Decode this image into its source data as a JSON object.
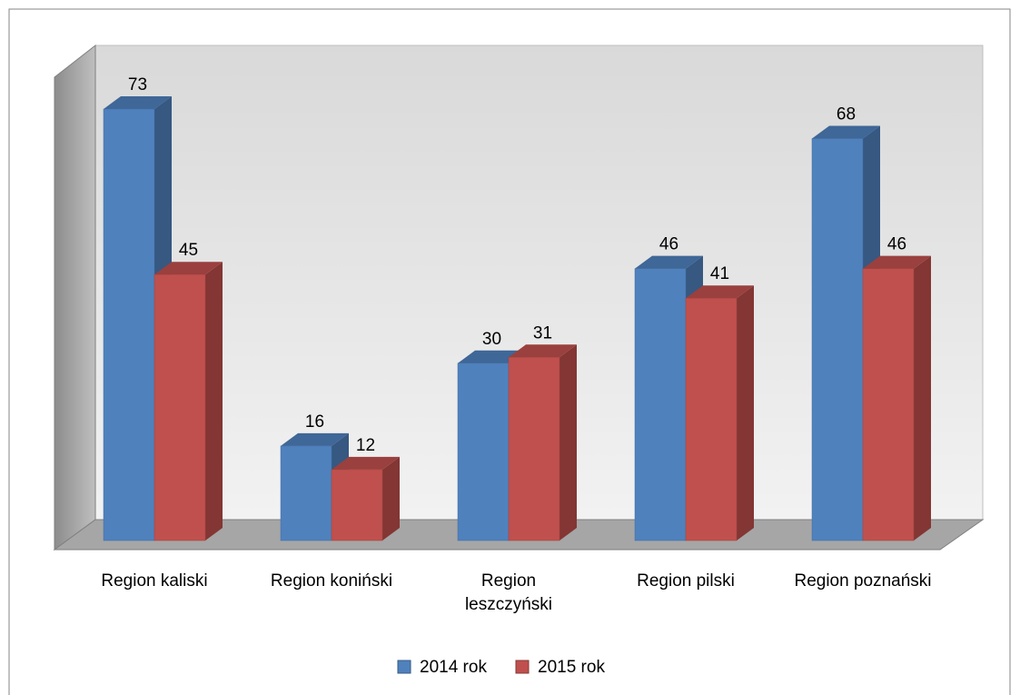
{
  "chart_data": {
    "type": "bar3d",
    "categories": [
      "Region kaliski",
      "Region koniński",
      "Region leszczyński",
      "Region pilski",
      "Region poznański"
    ],
    "series": [
      {
        "name": "2014 rok",
        "color": "#4f81bd",
        "values": [
          73,
          16,
          30,
          46,
          68
        ]
      },
      {
        "name": "2015 rok",
        "color": "#c0504d",
        "values": [
          45,
          12,
          31,
          41,
          46
        ]
      }
    ],
    "legend": "bottom"
  }
}
